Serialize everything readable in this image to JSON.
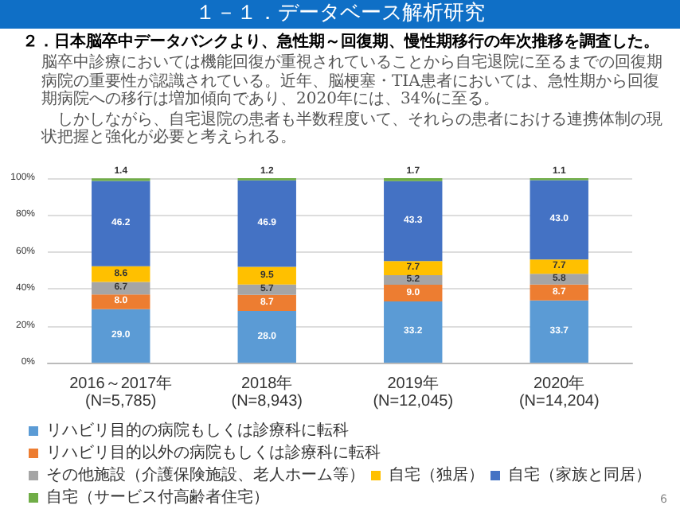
{
  "chart_data": {
    "type": "bar",
    "stacked": true,
    "title": "１－１．データベース解析研究",
    "subtitle": "２．日本脳卒中データバンクより、急性期～回復期、慢性期移行の年次推移を調査した。",
    "annotations": [
      "脳卒中診療においては機能回復が重視されていることから自宅退院に至るまでの回復期病院の重要性が認識されている。近年、脳梗塞・TIA患者においては、急性期から回復期病院への移行は増加傾向であり、2020年には、34%に至る。",
      "しかしながら、自宅退院の患者も半数程度いて、それらの患者における連携体制の現状把握と強化が必要と考えられる。",
      "6"
    ],
    "categories": [
      "2016～2017年 (N=5,785)",
      "2018年 (N=8,943)",
      "2019年 (N=12,045)",
      "2020年 (N=14,204)"
    ],
    "series": [
      {
        "name": "リハビリ目的の病院もしくは診療科に転科",
        "color": "#5b9bd5",
        "values": [
          29.0,
          28.0,
          33.2,
          33.7
        ],
        "value_labels": [
          "29.0",
          "28.0",
          "33.2",
          "33.7"
        ]
      },
      {
        "name": "リハビリ目的以外の病院もしくは診療科に転科",
        "color": "#ed7d31",
        "values": [
          8.0,
          8.7,
          9.0,
          8.7
        ],
        "value_labels": [
          "8.0",
          "8.7",
          "9.0",
          "8.7"
        ]
      },
      {
        "name": "その他施設（介護保険施設、老人ホーム等）",
        "color": "#a5a5a5",
        "values": [
          6.7,
          5.7,
          5.2,
          5.8
        ],
        "value_labels": [
          "6.7",
          "5.7",
          "5.2",
          "5.8"
        ]
      },
      {
        "name": "自宅（独居）",
        "color": "#ffc000",
        "values": [
          8.6,
          9.5,
          7.7,
          7.7
        ],
        "value_labels": [
          "8.6",
          "9.5",
          "7.7",
          "7.7"
        ]
      },
      {
        "name": "自宅（家族と同居）",
        "color": "#4472c4",
        "values": [
          46.2,
          46.9,
          43.3,
          43.0
        ],
        "value_labels": [
          "46.2",
          "46.9",
          "43.3",
          "43.0"
        ]
      },
      {
        "name": "自宅（サービス付高齢者住宅）",
        "color": "#70ad47",
        "values": [
          1.4,
          1.2,
          1.7,
          1.1
        ],
        "value_labels": [
          "1.4",
          "1.2",
          "1.7",
          "1.1"
        ]
      }
    ],
    "ylim": [
      0,
      100
    ],
    "yticks": [
      {
        "value": 0,
        "label": "0%"
      },
      {
        "value": 20,
        "label": "20%"
      },
      {
        "value": 40,
        "label": "40%"
      },
      {
        "value": 60,
        "label": "60%"
      },
      {
        "value": 80,
        "label": "80%"
      },
      {
        "value": 100,
        "label": "100%"
      }
    ],
    "grid": "y",
    "legend": "bottom"
  }
}
